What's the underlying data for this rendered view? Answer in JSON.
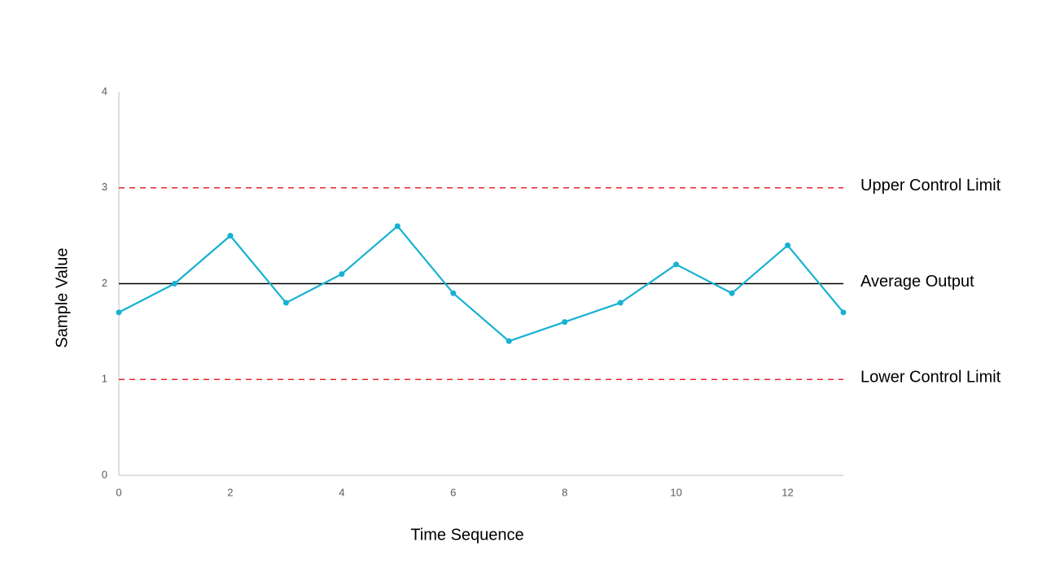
{
  "chart_data": {
    "type": "line",
    "x_label": "Time Sequence",
    "y_label": "Sample Value",
    "x": [
      0,
      1,
      2,
      3,
      4,
      5,
      6,
      7,
      8,
      9,
      10,
      11,
      12,
      13
    ],
    "series": [
      {
        "color": "#17b1d2",
        "values": [
          1.7,
          2.0,
          2.5,
          1.8,
          2.1,
          2.6,
          1.9,
          1.4,
          1.6,
          1.8,
          2.2,
          1.9,
          2.4,
          1.7
        ]
      }
    ],
    "reference_lines": [
      {
        "label": "Upper Control Limit",
        "value": 3,
        "color": "#e8262a",
        "style": "dashed"
      },
      {
        "label": "Average Output",
        "value": 2,
        "color": "#000000",
        "style": "solid"
      },
      {
        "label": "Lower Control Limit",
        "value": 1,
        "color": "#e8262a",
        "style": "dashed"
      }
    ],
    "xlim": [
      0,
      13
    ],
    "xticks": [
      0,
      2,
      4,
      6,
      8,
      10,
      12
    ],
    "ylim": [
      0,
      4
    ],
    "yticks": [
      0,
      1,
      2,
      3,
      4
    ],
    "grid": false
  }
}
